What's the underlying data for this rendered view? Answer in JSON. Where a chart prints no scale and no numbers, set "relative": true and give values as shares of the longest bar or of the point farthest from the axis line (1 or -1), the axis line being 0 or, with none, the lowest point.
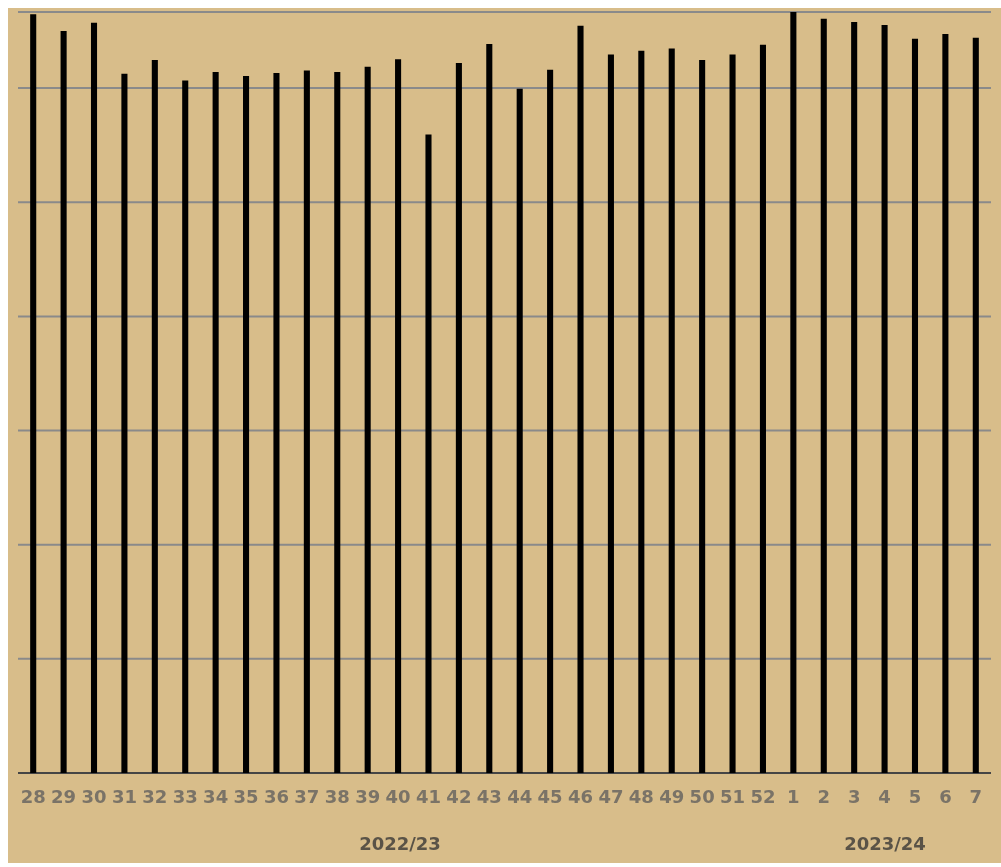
{
  "chart_data": {
    "type": "bar",
    "relative": true,
    "grid": "y",
    "color": "#000000",
    "categories": [
      "28",
      "29",
      "30",
      "31",
      "32",
      "33",
      "34",
      "35",
      "36",
      "37",
      "38",
      "39",
      "40",
      "41",
      "42",
      "43",
      "44",
      "45",
      "46",
      "47",
      "48",
      "49",
      "50",
      "51",
      "52",
      "1",
      "2",
      "3",
      "4",
      "5",
      "6",
      "7"
    ],
    "values": [
      0.997,
      0.975,
      0.986,
      0.919,
      0.937,
      0.91,
      0.921,
      0.916,
      0.92,
      0.923,
      0.921,
      0.928,
      0.938,
      0.839,
      0.933,
      0.958,
      0.899,
      0.924,
      0.982,
      0.944,
      0.949,
      0.952,
      0.937,
      0.944,
      0.957,
      1,
      0.991,
      0.987,
      0.983,
      0.965,
      0.971,
      0.966
    ],
    "annotations": [
      "2022/23",
      "2023/24"
    ]
  }
}
